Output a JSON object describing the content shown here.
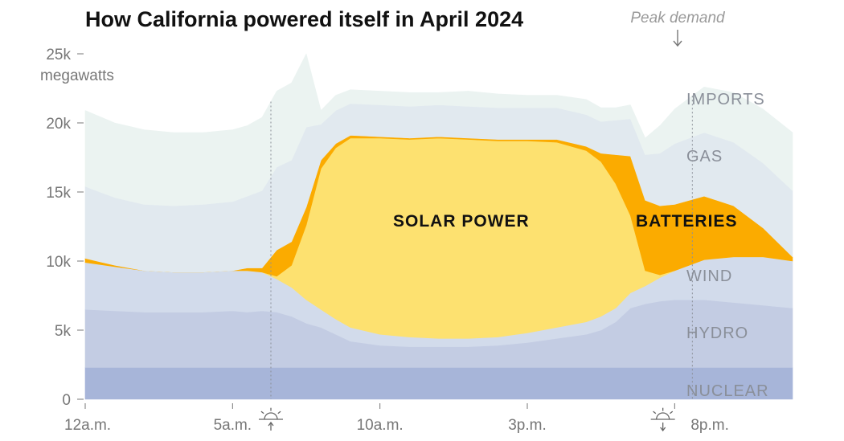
{
  "chart_data": {
    "type": "area",
    "title": "How California powered itself in April 2024",
    "y_unit_label": "megawatts",
    "ylim": [
      0,
      25000
    ],
    "y_ticks": [
      {
        "value": 0,
        "label": "0"
      },
      {
        "value": 5000,
        "label": "5k"
      },
      {
        "value": 10000,
        "label": "10k"
      },
      {
        "value": 15000,
        "label": "15k"
      },
      {
        "value": 20000,
        "label": "20k"
      },
      {
        "value": 25000,
        "label": "25k"
      }
    ],
    "xlim": [
      0,
      24
    ],
    "x_ticks": [
      {
        "value": 0,
        "label": "12a.m."
      },
      {
        "value": 5,
        "label": "5a.m."
      },
      {
        "value": 10,
        "label": "10a.m."
      },
      {
        "value": 15,
        "label": "3p.m."
      },
      {
        "value": 20,
        "label": "8p.m."
      }
    ],
    "sunrise_hour": 6.3,
    "sunset_hour": 19.6,
    "peak_demand_hour": 20.6,
    "annotation": "Peak demand",
    "x": [
      0,
      1,
      2,
      3,
      4,
      5,
      5.5,
      6,
      6.5,
      7,
      7.5,
      8,
      8.5,
      9,
      10,
      11,
      12,
      13,
      14,
      15,
      16,
      17,
      17.5,
      18,
      18.5,
      19,
      19.5,
      20,
      21,
      22,
      23,
      24
    ],
    "series": [
      {
        "name": "NUCLEAR",
        "color": "#a7b5d9",
        "values": [
          2300,
          2300,
          2300,
          2300,
          2300,
          2300,
          2300,
          2300,
          2300,
          2300,
          2300,
          2300,
          2300,
          2300,
          2300,
          2300,
          2300,
          2300,
          2300,
          2300,
          2300,
          2300,
          2300,
          2300,
          2300,
          2300,
          2300,
          2300,
          2300,
          2300,
          2300,
          2300
        ]
      },
      {
        "name": "HYDRO",
        "color": "#c3cce3",
        "values": [
          4200,
          4100,
          4000,
          4000,
          4000,
          4100,
          4000,
          4100,
          4000,
          3700,
          3200,
          2900,
          2400,
          1900,
          1600,
          1500,
          1500,
          1500,
          1600,
          1800,
          2100,
          2400,
          2700,
          3300,
          4300,
          4600,
          4800,
          4900,
          4900,
          4700,
          4500,
          4300
        ]
      },
      {
        "name": "WIND",
        "color": "#d2dbeb",
        "values": [
          3400,
          3200,
          3000,
          2900,
          2900,
          2900,
          3000,
          2800,
          2400,
          2100,
          1700,
          1300,
          1100,
          1000,
          800,
          700,
          600,
          600,
          600,
          700,
          800,
          900,
          1000,
          1000,
          1100,
          1300,
          1700,
          2100,
          2900,
          3300,
          3500,
          3400
        ]
      },
      {
        "name": "SOLAR POWER",
        "color": "#fde170",
        "values": [
          0,
          0,
          0,
          0,
          0,
          0,
          0,
          0,
          200,
          1600,
          5400,
          10200,
          12400,
          13700,
          14200,
          14300,
          14500,
          14400,
          14200,
          13900,
          13400,
          12400,
          11200,
          9000,
          5600,
          1100,
          200,
          0,
          0,
          0,
          0,
          0
        ]
      },
      {
        "name": "BATTERIES",
        "color": "#fbab00",
        "values": [
          300,
          100,
          0,
          0,
          0,
          0,
          200,
          300,
          1900,
          1700,
          1300,
          600,
          300,
          200,
          100,
          100,
          100,
          100,
          100,
          100,
          200,
          300,
          600,
          2100,
          4300,
          5100,
          5000,
          4800,
          4600,
          3700,
          2100,
          300
        ]
      },
      {
        "name": "GAS",
        "color": "#e1e9ef",
        "values": [
          5200,
          4900,
          4800,
          4800,
          4900,
          5000,
          5200,
          5600,
          6000,
          5900,
          5800,
          2600,
          2400,
          2300,
          2300,
          2300,
          2300,
          2300,
          2300,
          2300,
          2300,
          2300,
          2300,
          2500,
          2700,
          3300,
          3800,
          4400,
          4600,
          4600,
          4700,
          4800
        ]
      },
      {
        "name": "IMPORTS",
        "color": "#ebf3f1",
        "values": [
          5500,
          5400,
          5400,
          5300,
          5200,
          5200,
          5100,
          5300,
          5500,
          5600,
          5300,
          1000,
          1100,
          1000,
          1000,
          1000,
          900,
          1100,
          1000,
          900,
          900,
          1100,
          1000,
          900,
          1000,
          1200,
          2000,
          2500,
          3300,
          3600,
          3900,
          4200
        ]
      }
    ]
  },
  "area_labels": {
    "nuclear": "NUCLEAR",
    "hydro": "HYDRO",
    "wind": "WIND",
    "solar": "SOLAR POWER",
    "batteries": "BATTERIES",
    "gas": "GAS",
    "imports": "IMPORTS"
  }
}
